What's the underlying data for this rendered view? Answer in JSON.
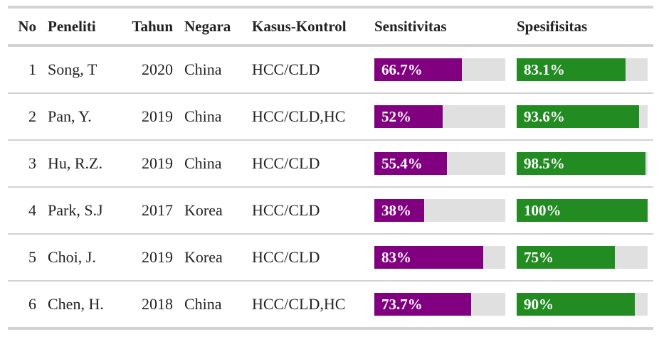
{
  "table": {
    "columns": {
      "no": "No",
      "peneliti": "Peneliti",
      "tahun": "Tahun",
      "negara": "Negara",
      "kasus_kontrol": "Kasus-Kontrol",
      "sensitivitas": "Sensitivitas",
      "spesifisitas": "Spesifisitas"
    },
    "colors": {
      "sensitivitas_bar": "#800080",
      "spesifisitas_bar": "#228b22",
      "bar_track": "#e0e0e0"
    },
    "rows": [
      {
        "no": "1",
        "peneliti": "Song, T",
        "tahun": "2020",
        "negara": "China",
        "kasus_kontrol": "HCC/CLD",
        "sensitivitas": "66.7%",
        "sens_value": 66.7,
        "spesifisitas": "83.1%",
        "spec_value": 83.1
      },
      {
        "no": "2",
        "peneliti": "Pan, Y.",
        "tahun": "2019",
        "negara": "China",
        "kasus_kontrol": "HCC/CLD,HC",
        "sensitivitas": "52%",
        "sens_value": 52,
        "spesifisitas": "93.6%",
        "spec_value": 93.6
      },
      {
        "no": "3",
        "peneliti": "Hu, R.Z.",
        "tahun": "2019",
        "negara": "China",
        "kasus_kontrol": "HCC/CLD",
        "sensitivitas": "55.4%",
        "sens_value": 55.4,
        "spesifisitas": "98.5%",
        "spec_value": 98.5
      },
      {
        "no": "4",
        "peneliti": "Park, S.J",
        "tahun": "2017",
        "negara": "Korea",
        "kasus_kontrol": "HCC/CLD",
        "sensitivitas": "38%",
        "sens_value": 38,
        "spesifisitas": "100%",
        "spec_value": 100
      },
      {
        "no": "5",
        "peneliti": "Choi, J.",
        "tahun": "2019",
        "negara": "Korea",
        "kasus_kontrol": "HCC/CLD",
        "sensitivitas": "83%",
        "sens_value": 83,
        "spesifisitas": "75%",
        "spec_value": 75
      },
      {
        "no": "6",
        "peneliti": "Chen, H.",
        "tahun": "2018",
        "negara": "China",
        "kasus_kontrol": "HCC/CLD,HC",
        "sensitivitas": "73.7%",
        "sens_value": 73.7,
        "spesifisitas": "90%",
        "spec_value": 90
      }
    ]
  }
}
